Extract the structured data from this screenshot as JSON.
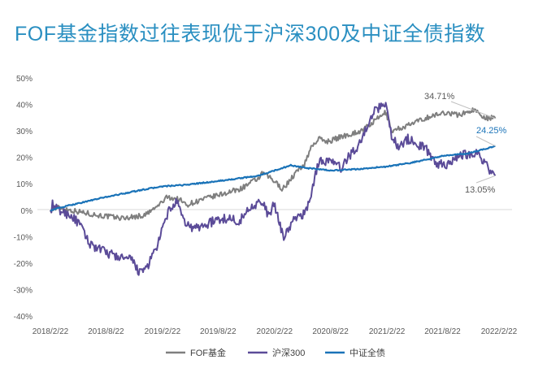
{
  "chart_data": {
    "type": "line",
    "title": "FOF基金指数过往表现优于沪深300及中证全债指数",
    "xlabel": "",
    "ylabel": "",
    "y_unit": "%",
    "ylim": [
      -40,
      50
    ],
    "y_ticks": [
      50,
      40,
      30,
      20,
      10,
      0,
      -10,
      -20,
      -30,
      -40
    ],
    "y_tick_labels": [
      "50%",
      "40%",
      "30%",
      "20%",
      "10%",
      "0%",
      "-10%",
      "-20%",
      "-30%",
      "-40%"
    ],
    "x_tick_labels": [
      "2018/2/22",
      "2018/8/22",
      "2019/2/22",
      "2019/8/22",
      "2020/2/22",
      "2020/8/22",
      "2021/2/22",
      "2021/8/22",
      "2022/2/22"
    ],
    "x_ticks": [
      "2018-02-22",
      "2018-08-22",
      "2019-02-22",
      "2019-08-22",
      "2020-02-22",
      "2020-08-22",
      "2021-02-22",
      "2021-08-22",
      "2022-02-22"
    ],
    "grid": false,
    "legend_position": "bottom",
    "series": [
      {
        "name": "FOF基金",
        "color": "#7f7f7f",
        "end_label": "34.71%",
        "points": [
          [
            "2018-02-22",
            0
          ],
          [
            "2018-03-20",
            1
          ],
          [
            "2018-05-01",
            0
          ],
          [
            "2018-06-15",
            -1
          ],
          [
            "2018-08-01",
            -2
          ],
          [
            "2018-10-15",
            -3
          ],
          [
            "2018-12-25",
            -2
          ],
          [
            "2019-02-01",
            1
          ],
          [
            "2019-03-10",
            5
          ],
          [
            "2019-04-20",
            4
          ],
          [
            "2019-05-10",
            2
          ],
          [
            "2019-07-01",
            4
          ],
          [
            "2019-09-01",
            6
          ],
          [
            "2019-11-01",
            8
          ],
          [
            "2019-12-31",
            12
          ],
          [
            "2020-01-15",
            14
          ],
          [
            "2020-02-10",
            12
          ],
          [
            "2020-03-20",
            8
          ],
          [
            "2020-04-30",
            14
          ],
          [
            "2020-06-01",
            18
          ],
          [
            "2020-06-20",
            24
          ],
          [
            "2020-07-15",
            27
          ],
          [
            "2020-08-15",
            26
          ],
          [
            "2020-10-01",
            28
          ],
          [
            "2020-12-01",
            30
          ],
          [
            "2021-01-05",
            33
          ],
          [
            "2021-02-18",
            37
          ],
          [
            "2021-03-10",
            30
          ],
          [
            "2021-05-01",
            32
          ],
          [
            "2021-07-01",
            35
          ],
          [
            "2021-09-01",
            37
          ],
          [
            "2021-10-15",
            36
          ],
          [
            "2021-12-01",
            38
          ],
          [
            "2022-01-10",
            35
          ],
          [
            "2022-02-10",
            34.71
          ]
        ]
      },
      {
        "name": "沪深300",
        "color": "#5b4b98",
        "end_label": "13.05%",
        "points": [
          [
            "2018-02-22",
            0
          ],
          [
            "2018-03-01",
            2
          ],
          [
            "2018-03-20",
            0
          ],
          [
            "2018-05-01",
            -2
          ],
          [
            "2018-06-01",
            -6
          ],
          [
            "2018-06-25",
            -12
          ],
          [
            "2018-07-20",
            -14
          ],
          [
            "2018-08-22",
            -16
          ],
          [
            "2018-10-10",
            -18
          ],
          [
            "2018-11-15",
            -19
          ],
          [
            "2018-12-01",
            -22
          ],
          [
            "2018-12-15",
            -24
          ],
          [
            "2019-01-10",
            -20
          ],
          [
            "2019-02-10",
            -12
          ],
          [
            "2019-02-25",
            -6
          ],
          [
            "2019-03-15",
            0
          ],
          [
            "2019-04-10",
            3
          ],
          [
            "2019-05-01",
            -4
          ],
          [
            "2019-06-01",
            -7
          ],
          [
            "2019-07-01",
            -6
          ],
          [
            "2019-08-10",
            -4
          ],
          [
            "2019-09-20",
            -3
          ],
          [
            "2019-11-01",
            -4
          ],
          [
            "2019-12-10",
            2
          ],
          [
            "2020-01-10",
            3
          ],
          [
            "2020-02-04",
            -2
          ],
          [
            "2020-02-20",
            2
          ],
          [
            "2020-03-23",
            -10
          ],
          [
            "2020-04-30",
            -3
          ],
          [
            "2020-06-01",
            -1
          ],
          [
            "2020-06-20",
            6
          ],
          [
            "2020-07-13",
            18
          ],
          [
            "2020-08-15",
            19
          ],
          [
            "2020-09-25",
            16
          ],
          [
            "2020-11-01",
            22
          ],
          [
            "2020-12-01",
            26
          ],
          [
            "2021-01-01",
            36
          ],
          [
            "2021-02-18",
            41
          ],
          [
            "2021-03-09",
            28
          ],
          [
            "2021-04-01",
            24
          ],
          [
            "2021-05-01",
            27
          ],
          [
            "2021-06-01",
            25
          ],
          [
            "2021-07-01",
            23
          ],
          [
            "2021-07-28",
            18
          ],
          [
            "2021-09-01",
            17
          ],
          [
            "2021-10-01",
            20
          ],
          [
            "2021-11-01",
            21
          ],
          [
            "2021-12-10",
            22
          ],
          [
            "2022-01-01",
            19
          ],
          [
            "2022-01-28",
            14
          ],
          [
            "2022-02-10",
            13.05
          ]
        ]
      },
      {
        "name": "中证全债",
        "color": "#1a73b8",
        "end_label": "24.25%",
        "points": [
          [
            "2018-02-22",
            0
          ],
          [
            "2018-05-01",
            2
          ],
          [
            "2018-08-22",
            5
          ],
          [
            "2018-12-31",
            8
          ],
          [
            "2019-02-22",
            9
          ],
          [
            "2019-05-01",
            9.5
          ],
          [
            "2019-08-22",
            11
          ],
          [
            "2019-12-31",
            13
          ],
          [
            "2020-04-15",
            17
          ],
          [
            "2020-05-31",
            16
          ],
          [
            "2020-08-22",
            15
          ],
          [
            "2020-11-15",
            15.5
          ],
          [
            "2021-02-22",
            16.5
          ],
          [
            "2021-05-15",
            18
          ],
          [
            "2021-08-22",
            20.5
          ],
          [
            "2021-11-15",
            21.5
          ],
          [
            "2022-02-10",
            24.25
          ]
        ]
      }
    ]
  }
}
